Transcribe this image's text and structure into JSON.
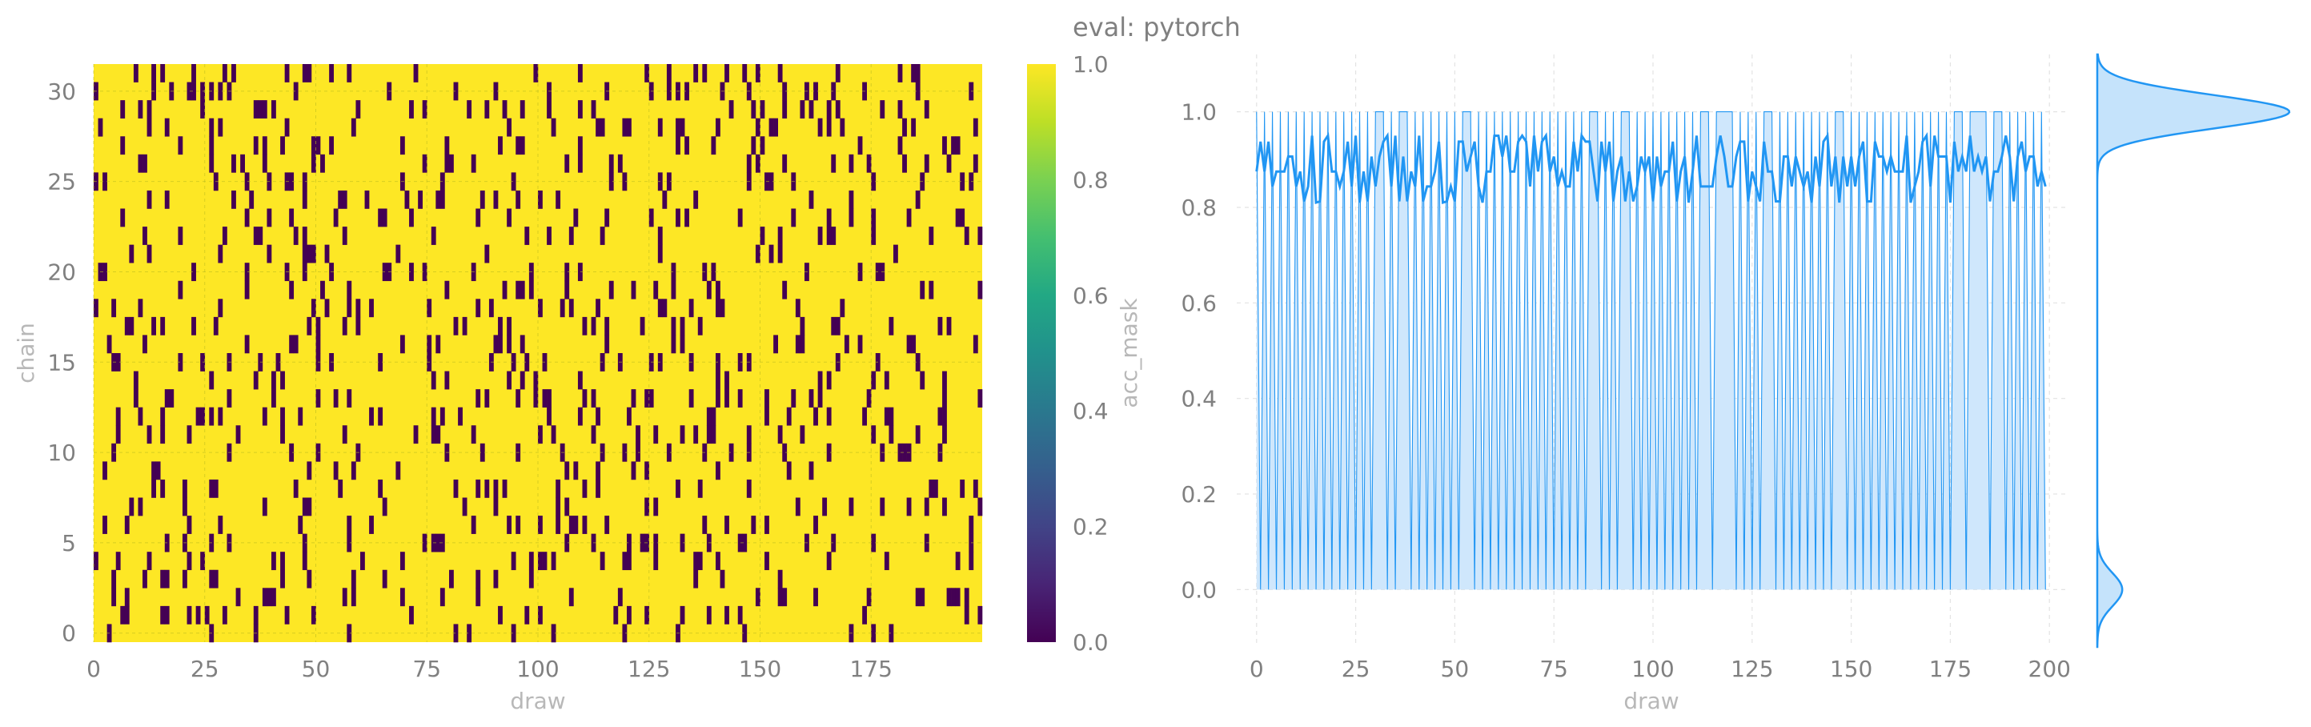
{
  "title": "eval: pytorch",
  "colors": {
    "heat_low": "#440154",
    "heat_high": "#fde725",
    "line": "#2196f3",
    "fill": "#c5e3fb",
    "grid": "#e3e3e3",
    "tick_text": "#808080",
    "label_text": "#b8b8b8"
  },
  "chart_data": [
    {
      "type": "heatmap",
      "xlabel": "draw",
      "ylabel": "chain",
      "xlim": [
        0,
        200
      ],
      "ylim": [
        0,
        32
      ],
      "x_ticks": [
        0,
        25,
        50,
        75,
        100,
        125,
        150,
        175
      ],
      "y_ticks": [
        0,
        5,
        10,
        15,
        20,
        25,
        30
      ],
      "n_draws": 200,
      "n_chains": 32,
      "mean_acceptance": 0.89,
      "colorbar": {
        "label": "acc_mask",
        "range": [
          0.0,
          1.0
        ],
        "ticks": [
          "0.0",
          "0.2",
          "0.4",
          "0.6",
          "0.8",
          "1.0"
        ],
        "colormap": "viridis"
      }
    },
    {
      "type": "line",
      "xlabel": "draw",
      "ylabel": "",
      "xlim": [
        -5,
        205
      ],
      "ylim": [
        -0.12,
        1.12
      ],
      "x_ticks": [
        0,
        25,
        50,
        75,
        100,
        125,
        150,
        175,
        200
      ],
      "y_ticks": [
        "0.0",
        "0.2",
        "0.4",
        "0.6",
        "0.8",
        "1.0"
      ],
      "series": [
        {
          "role": "per-draw acceptance of one chain (0/1 trace)"
        },
        {
          "role": "mean acceptance across chains",
          "approx_level": 0.89,
          "approx_range": [
            0.81,
            0.95
          ]
        }
      ]
    },
    {
      "type": "area",
      "orientation": "horizontal",
      "description": "marginal density of acceptance values",
      "modes": [
        {
          "y": 1.0,
          "relative_height": 1.0
        },
        {
          "y": 0.0,
          "relative_height": 0.13
        }
      ]
    }
  ]
}
